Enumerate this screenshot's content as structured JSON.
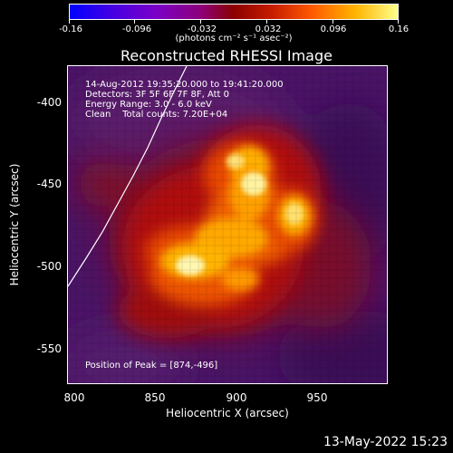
{
  "colorbar": {
    "tick_labels": [
      "-0.16",
      "-0.096",
      "-0.032",
      "0.032",
      "0.096",
      "0.16"
    ],
    "units": "(photons cm⁻² s⁻¹ asec⁻²)"
  },
  "title": "Reconstructed RHESSI Image",
  "info": {
    "time_range": "14-Aug-2012 19:35:20.000 to 19:41:20.000",
    "detectors": "Detectors: 3F 5F 6F 7F 8F, Att 0",
    "energy_range": "Energy Range: 3.0 - 6.0 keV",
    "clean": "Clean    Total counts: 7.20E+04",
    "peak": "Position of Peak = [874,-496]"
  },
  "axes": {
    "xlabel": "Heliocentric X (arcsec)",
    "ylabel": "Heliocentric Y (arcsec)",
    "xticks": [
      "800",
      "850",
      "900",
      "950"
    ],
    "yticks": [
      "-400",
      "-450",
      "-500",
      "-550"
    ]
  },
  "image": {
    "peak_position": [
      874,
      -496
    ],
    "x_range": [
      797,
      988
    ],
    "y_range": [
      -373,
      -572
    ],
    "colormap": "red-temperature"
  },
  "footer": {
    "timestamp": "13-May-2022 15:23"
  }
}
